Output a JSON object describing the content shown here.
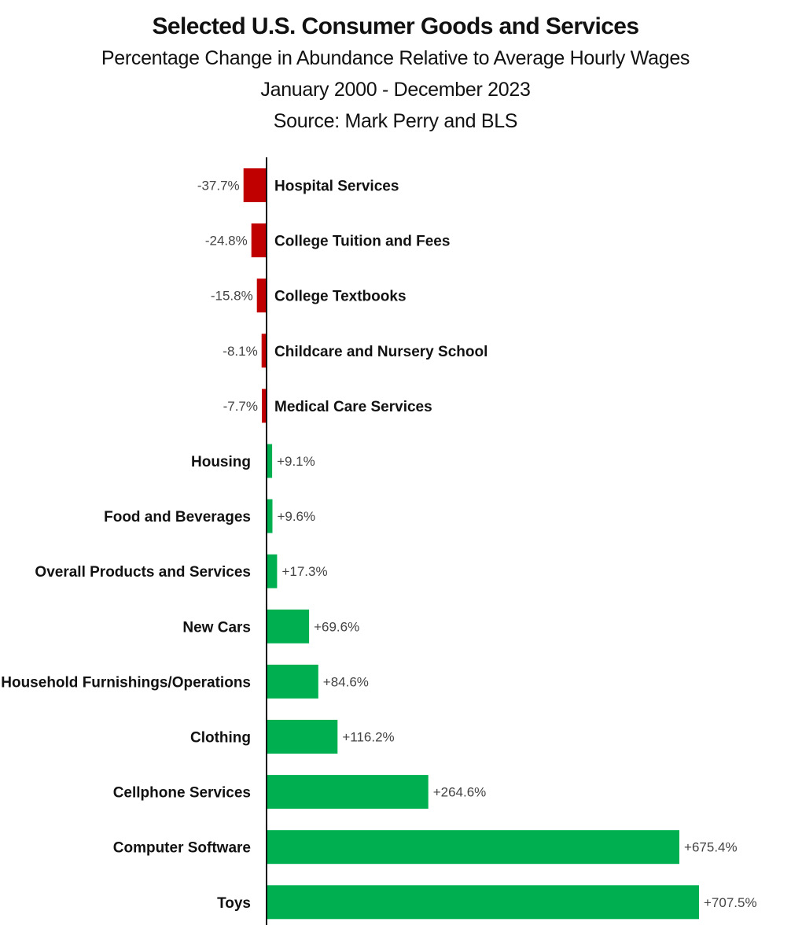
{
  "title": "Selected U.S. Consumer Goods and Services",
  "subtitle_lines": [
    "Percentage Change in Abundance Relative to Average Hourly Wages",
    "January 2000  -  December 2023",
    "Source: Mark Perry and BLS"
  ],
  "colors": {
    "negative": "#c00000",
    "positive": "#00b050",
    "axis": "#111111"
  },
  "chart_data": {
    "type": "bar",
    "orientation": "horizontal",
    "title": "Selected U.S. Consumer Goods and Services",
    "categories": [
      "Hospital Services",
      "College Tuition and Fees",
      "College Textbooks",
      "Childcare and Nursery School",
      "Medical Care Services",
      "Housing",
      "Food and Beverages",
      "Overall Products and Services",
      "New Cars",
      "Household Furnishings/Operations",
      "Clothing",
      "Cellphone Services",
      "Computer Software",
      "Toys"
    ],
    "values": [
      -37.7,
      -24.8,
      -15.8,
      -8.1,
      -7.7,
      9.1,
      9.6,
      17.3,
      69.6,
      84.6,
      116.2,
      264.6,
      675.4,
      707.5
    ],
    "value_labels": [
      "-37.7%",
      "-24.8%",
      "-15.8%",
      "-8.1%",
      "-7.7%",
      "+9.1%",
      "+9.6%",
      "+17.3%",
      "+69.6%",
      "+84.6%",
      "+116.2%",
      "+264.6%",
      "+675.4%",
      "+707.5%"
    ],
    "grid": false,
    "legend": "none"
  }
}
